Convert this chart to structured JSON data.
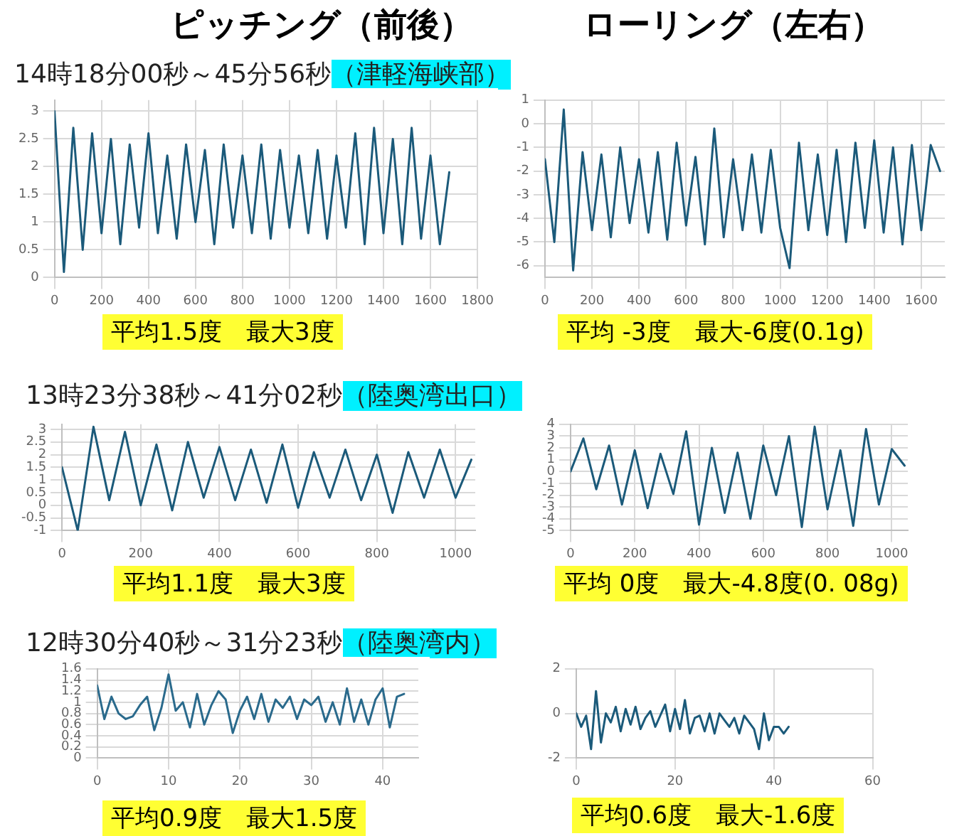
{
  "chart_data": [
    {
      "type": "line",
      "title": "ピッチング（前後）",
      "subtitle": "14時18分00秒～45分56秒",
      "annotations": [
        "（津軽海峡部）",
        "平均1.5度　最大3度"
      ],
      "marker": "none",
      "grid": true,
      "xlim": [
        0,
        1800
      ],
      "xticks": [
        0,
        200,
        400,
        600,
        800,
        1000,
        1200,
        1400,
        1600,
        1800
      ],
      "ylim": [
        0,
        3.2
      ],
      "yticks": [
        0,
        0.5,
        1,
        1.5,
        2,
        2.5,
        3
      ],
      "x": [
        0,
        40,
        80,
        120,
        160,
        200,
        240,
        280,
        320,
        360,
        400,
        440,
        480,
        520,
        560,
        600,
        640,
        680,
        720,
        760,
        800,
        840,
        880,
        920,
        960,
        1000,
        1040,
        1080,
        1120,
        1160,
        1200,
        1240,
        1280,
        1320,
        1360,
        1400,
        1440,
        1480,
        1520,
        1560,
        1600,
        1640,
        1680
      ],
      "series": [
        {
          "color": "#1b5a7a",
          "values": [
            3.0,
            0.1,
            2.7,
            0.5,
            2.6,
            0.8,
            2.5,
            0.6,
            2.4,
            0.9,
            2.6,
            0.8,
            2.2,
            0.7,
            2.4,
            1.0,
            2.3,
            0.6,
            2.4,
            0.9,
            2.2,
            0.8,
            2.4,
            0.7,
            2.3,
            0.9,
            2.2,
            0.8,
            2.3,
            0.7,
            2.2,
            0.9,
            2.6,
            0.6,
            2.7,
            0.8,
            2.5,
            0.6,
            2.7,
            0.7,
            2.2,
            0.6,
            1.9
          ]
        }
      ]
    },
    {
      "type": "line",
      "title": "ローリング（左右）",
      "annotations": [
        "平均 -3度　最大-6度(0.1g)"
      ],
      "marker": "none",
      "grid": true,
      "xlim": [
        0,
        1700
      ],
      "xticks": [
        0,
        200,
        400,
        600,
        800,
        1000,
        1200,
        1400,
        1600
      ],
      "ylim": [
        -6.5,
        1
      ],
      "yticks": [
        -6,
        -5,
        -4,
        -3,
        -2,
        -1,
        0,
        1
      ],
      "x": [
        0,
        40,
        80,
        120,
        160,
        200,
        240,
        280,
        320,
        360,
        400,
        440,
        480,
        520,
        560,
        600,
        640,
        680,
        720,
        760,
        800,
        840,
        880,
        920,
        960,
        1000,
        1040,
        1080,
        1120,
        1160,
        1200,
        1240,
        1280,
        1320,
        1360,
        1400,
        1440,
        1480,
        1520,
        1560,
        1600,
        1640,
        1680
      ],
      "series": [
        {
          "color": "#1b5a7a",
          "values": [
            -1.5,
            -5.0,
            0.6,
            -6.2,
            -1.2,
            -4.5,
            -1.3,
            -4.8,
            -1.0,
            -4.2,
            -1.5,
            -4.6,
            -1.2,
            -4.9,
            -0.8,
            -4.3,
            -1.4,
            -5.1,
            -0.2,
            -4.8,
            -1.5,
            -4.5,
            -1.3,
            -4.6,
            -1.1,
            -4.4,
            -6.1,
            -0.8,
            -4.5,
            -1.3,
            -4.7,
            -1.1,
            -5.0,
            -0.8,
            -4.4,
            -0.7,
            -4.6,
            -1.0,
            -5.1,
            -0.9,
            -4.5,
            -0.9,
            -2.0
          ]
        }
      ]
    },
    {
      "type": "line",
      "subtitle": "13時23分38秒～41分02秒",
      "annotations": [
        "（陸奥湾出口）",
        "平均1.1度　最大3度"
      ],
      "marker": "none",
      "grid": true,
      "xlim": [
        0,
        1050
      ],
      "xticks": [
        0,
        200,
        400,
        600,
        800,
        1000
      ],
      "ylim": [
        -1,
        3.2
      ],
      "yticks": [
        -1,
        -0.5,
        0,
        0.5,
        1,
        1.5,
        2,
        2.5,
        3
      ],
      "x": [
        0,
        40,
        80,
        120,
        160,
        200,
        240,
        280,
        320,
        360,
        400,
        440,
        480,
        520,
        560,
        600,
        640,
        680,
        720,
        760,
        800,
        840,
        880,
        920,
        960,
        1000,
        1040
      ],
      "series": [
        {
          "color": "#1b5a7a",
          "values": [
            1.5,
            -1.0,
            3.1,
            0.2,
            2.9,
            0.0,
            2.4,
            -0.2,
            2.5,
            0.3,
            2.3,
            0.2,
            2.2,
            0.1,
            2.4,
            -0.1,
            2.1,
            0.3,
            2.2,
            0.2,
            2.0,
            -0.3,
            2.1,
            0.3,
            2.2,
            0.3,
            1.8
          ]
        }
      ]
    },
    {
      "type": "line",
      "annotations": [
        "平均 0度　最大-4.8度(0. 08g)"
      ],
      "marker": "none",
      "grid": true,
      "xlim": [
        0,
        1050
      ],
      "xticks": [
        0,
        200,
        400,
        600,
        800,
        1000
      ],
      "ylim": [
        -5,
        4
      ],
      "yticks": [
        -5,
        -4,
        -3,
        -2,
        -1,
        0,
        1,
        2,
        3,
        4
      ],
      "x": [
        0,
        40,
        80,
        120,
        160,
        200,
        240,
        280,
        320,
        360,
        400,
        440,
        480,
        520,
        560,
        600,
        640,
        680,
        720,
        760,
        800,
        840,
        880,
        920,
        960,
        1000,
        1040
      ],
      "series": [
        {
          "color": "#1b5a7a",
          "values": [
            0,
            2.8,
            -1.5,
            2.2,
            -2.8,
            1.8,
            -3.1,
            1.5,
            -1.9,
            3.4,
            -4.5,
            2.0,
            -3.5,
            1.6,
            -4.0,
            2.2,
            -2.0,
            3.0,
            -4.7,
            3.8,
            -3.2,
            1.8,
            -4.6,
            3.6,
            -2.8,
            1.9,
            0.5
          ]
        }
      ]
    },
    {
      "type": "line",
      "subtitle": "12時30分40秒～31分23秒",
      "annotations": [
        "（陸奥湾内）",
        "平均0.9度　最大1.5度"
      ],
      "marker": "none",
      "grid": true,
      "xlim": [
        0,
        45
      ],
      "xticks": [
        0,
        10,
        20,
        30,
        40
      ],
      "ylim": [
        0,
        1.6
      ],
      "yticks": [
        0,
        0.2,
        0.4,
        0.6,
        0.8,
        1,
        1.2,
        1.4,
        1.6
      ],
      "x": [
        0,
        1,
        2,
        3,
        4,
        5,
        6,
        7,
        8,
        9,
        10,
        11,
        12,
        13,
        14,
        15,
        16,
        17,
        18,
        19,
        20,
        21,
        22,
        23,
        24,
        25,
        26,
        27,
        28,
        29,
        30,
        31,
        32,
        33,
        34,
        35,
        36,
        37,
        38,
        39,
        40,
        41,
        42,
        43
      ],
      "series": [
        {
          "color": "#2a6a8c",
          "values": [
            1.3,
            0.7,
            1.1,
            0.8,
            0.7,
            0.75,
            0.95,
            1.1,
            0.5,
            0.9,
            1.5,
            0.85,
            1.0,
            0.55,
            1.15,
            0.6,
            0.95,
            1.2,
            1.05,
            0.45,
            0.85,
            1.1,
            0.7,
            1.15,
            0.65,
            1.05,
            0.9,
            1.1,
            0.7,
            1.05,
            0.95,
            1.1,
            0.65,
            1.0,
            0.6,
            1.25,
            0.65,
            1.05,
            0.6,
            1.05,
            1.25,
            0.55,
            1.1,
            1.15
          ]
        }
      ]
    },
    {
      "type": "line",
      "annotations": [
        "平均0.6度　最大-1.6度"
      ],
      "marker": "none",
      "grid": true,
      "xlim": [
        0,
        60
      ],
      "xticks": [
        0,
        20,
        40,
        60
      ],
      "ylim": [
        -2,
        2
      ],
      "yticks": [
        -2,
        0,
        2
      ],
      "x": [
        0,
        1,
        2,
        3,
        4,
        5,
        6,
        7,
        8,
        9,
        10,
        11,
        12,
        13,
        14,
        15,
        16,
        17,
        18,
        19,
        20,
        21,
        22,
        23,
        24,
        25,
        26,
        27,
        28,
        29,
        30,
        31,
        32,
        33,
        34,
        35,
        36,
        37,
        38,
        39,
        40,
        41,
        42,
        43
      ],
      "series": [
        {
          "color": "#1b5a7a",
          "values": [
            0,
            -0.6,
            -0.1,
            -1.6,
            1.0,
            -1.3,
            0.0,
            -0.4,
            0.3,
            -0.8,
            0.2,
            -0.5,
            0.3,
            -0.7,
            -0.2,
            0.1,
            -0.6,
            -0.1,
            0.4,
            -0.8,
            0.2,
            -0.7,
            0.6,
            -0.9,
            -0.2,
            -0.1,
            -0.8,
            0.0,
            -0.9,
            0.0,
            -0.3,
            -0.6,
            -0.2,
            -0.9,
            -0.1,
            -0.4,
            -0.7,
            -1.6,
            0.0,
            -1.2,
            -0.6,
            -0.6,
            -0.9,
            -0.6
          ]
        }
      ]
    }
  ]
}
